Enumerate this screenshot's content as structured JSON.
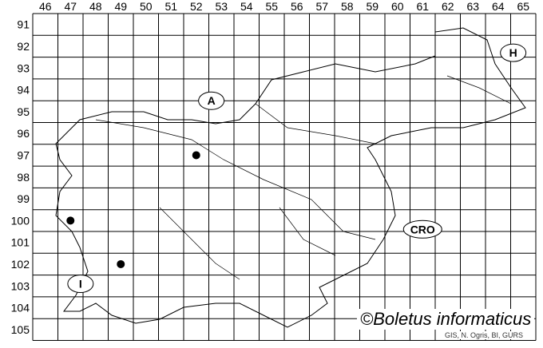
{
  "grid": {
    "columns": [
      "46",
      "47",
      "48",
      "49",
      "50",
      "51",
      "52",
      "53",
      "54",
      "55",
      "56",
      "57",
      "58",
      "59",
      "60",
      "61",
      "62",
      "63",
      "64",
      "65"
    ],
    "rows": [
      "91",
      "92",
      "93",
      "94",
      "95",
      "96",
      "97",
      "98",
      "99",
      "100",
      "101",
      "102",
      "103",
      "104",
      "105"
    ]
  },
  "country_labels": [
    {
      "text": "A",
      "col": 52.6,
      "row": 94.5
    },
    {
      "text": "H",
      "col": 64.6,
      "row": 92.3
    },
    {
      "text": "CRO",
      "col": 61.0,
      "row": 100.4
    },
    {
      "text": "I",
      "col": 47.4,
      "row": 102.9
    }
  ],
  "records": [
    {
      "col": 52,
      "row": 97
    },
    {
      "col": 47,
      "row": 100
    },
    {
      "col": 49,
      "row": 102
    }
  ],
  "credit": "©Boletus informaticus",
  "source": "GIS, N. Ogris, BI, GURS",
  "colors": {
    "lines": "#000000",
    "background": "#ffffff",
    "dots": "#000000"
  }
}
